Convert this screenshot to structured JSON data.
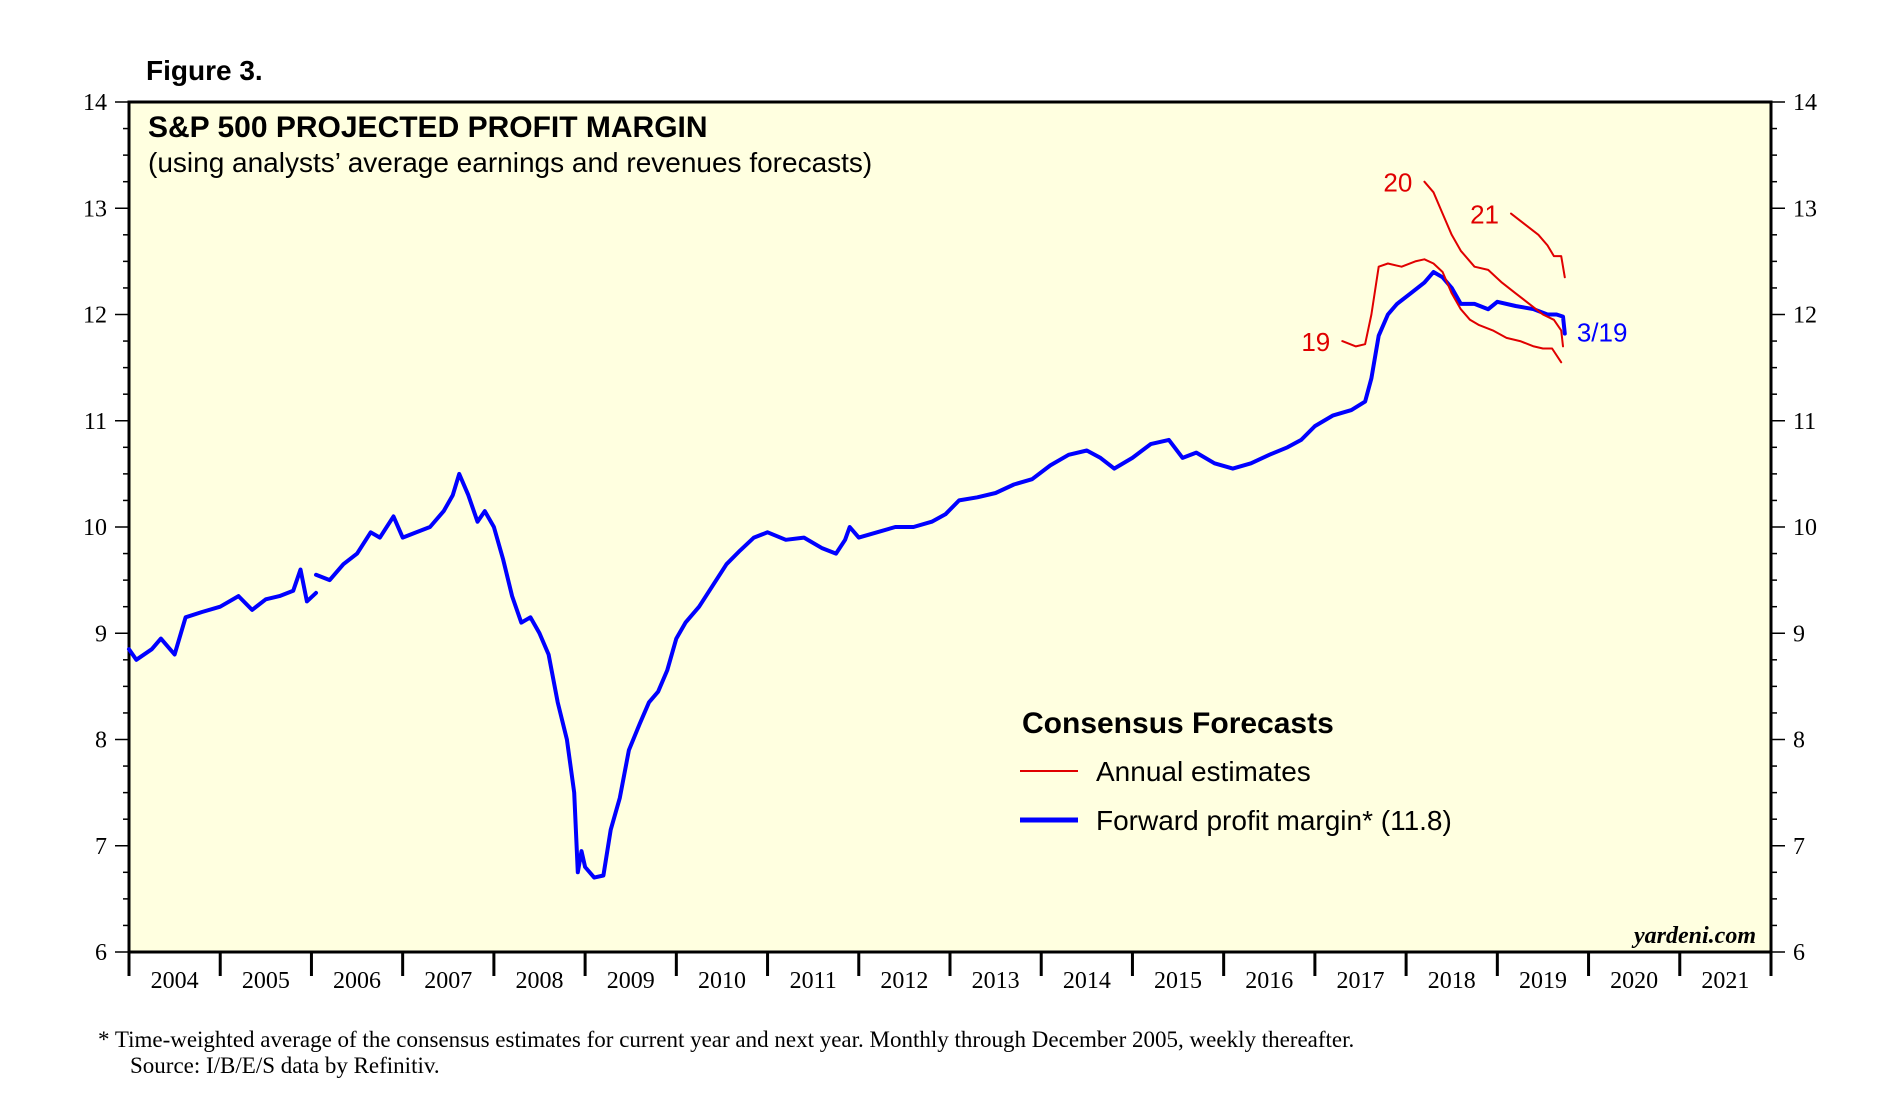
{
  "figure_label": "Figure 3.",
  "footnote": {
    "line1": "*   Time-weighted average of the consensus estimates for current year and next year. Monthly through December 2005, weekly thereafter.",
    "line2": "Source: I/B/E/S data by Refinitiv."
  },
  "colors": {
    "plot_bg": "#ffffe0",
    "forward": "#0000ff",
    "annual": "#e00000",
    "text": "#000000"
  },
  "chart_data": {
    "type": "line",
    "title": "S&P 500 PROJECTED PROFIT MARGIN",
    "subtitle": "(using analysts’ average earnings and revenues forecasts)",
    "watermark": "yardeni.com",
    "xlabel": "",
    "ylabel": "",
    "xlim": [
      2004.0,
      2022.0
    ],
    "ylim": [
      6,
      14
    ],
    "y_ticks": [
      6,
      7,
      8,
      9,
      10,
      11,
      12,
      13,
      14
    ],
    "x_tick_labels": [
      "2004",
      "2005",
      "2006",
      "2007",
      "2008",
      "2009",
      "2010",
      "2011",
      "2012",
      "2013",
      "2014",
      "2015",
      "2016",
      "2017",
      "2018",
      "2019",
      "2020",
      "2021"
    ],
    "legend": {
      "title": "Consensus Forecasts",
      "position": "lower-right",
      "items": [
        "Annual estimates",
        "Forward profit margin* (11.8)"
      ]
    },
    "annotations": {
      "last_date_label": "3/19",
      "year_labels": [
        "19",
        "20",
        "21"
      ]
    },
    "series": [
      {
        "name": "Forward profit margin*",
        "color": "#0000ff",
        "segments": [
          [
            [
              2004.0,
              8.85
            ],
            [
              2004.08,
              8.75
            ],
            [
              2004.25,
              8.85
            ],
            [
              2004.35,
              8.95
            ],
            [
              2004.5,
              8.8
            ],
            [
              2004.62,
              9.15
            ],
            [
              2004.8,
              9.2
            ],
            [
              2005.0,
              9.25
            ],
            [
              2005.2,
              9.35
            ],
            [
              2005.35,
              9.22
            ],
            [
              2005.5,
              9.32
            ],
            [
              2005.65,
              9.35
            ],
            [
              2005.8,
              9.4
            ],
            [
              2005.88,
              9.6
            ],
            [
              2005.95,
              9.3
            ],
            [
              2006.05,
              9.38
            ]
          ],
          [
            [
              2006.05,
              9.55
            ],
            [
              2006.2,
              9.5
            ],
            [
              2006.35,
              9.65
            ],
            [
              2006.5,
              9.75
            ],
            [
              2006.65,
              9.95
            ],
            [
              2006.75,
              9.9
            ],
            [
              2006.9,
              10.1
            ],
            [
              2007.0,
              9.9
            ],
            [
              2007.15,
              9.95
            ],
            [
              2007.3,
              10.0
            ],
            [
              2007.45,
              10.15
            ],
            [
              2007.55,
              10.3
            ],
            [
              2007.62,
              10.5
            ],
            [
              2007.72,
              10.3
            ],
            [
              2007.82,
              10.05
            ],
            [
              2007.9,
              10.15
            ],
            [
              2008.0,
              10.0
            ],
            [
              2008.1,
              9.7
            ],
            [
              2008.2,
              9.35
            ],
            [
              2008.3,
              9.1
            ],
            [
              2008.4,
              9.15
            ],
            [
              2008.5,
              9.0
            ],
            [
              2008.6,
              8.8
            ],
            [
              2008.7,
              8.35
            ],
            [
              2008.8,
              8.0
            ],
            [
              2008.88,
              7.5
            ],
            [
              2008.92,
              6.75
            ],
            [
              2008.96,
              6.95
            ],
            [
              2009.0,
              6.8
            ],
            [
              2009.1,
              6.7
            ],
            [
              2009.2,
              6.72
            ],
            [
              2009.28,
              7.15
            ],
            [
              2009.38,
              7.45
            ],
            [
              2009.48,
              7.9
            ],
            [
              2009.6,
              8.15
            ],
            [
              2009.7,
              8.35
            ],
            [
              2009.8,
              8.45
            ],
            [
              2009.9,
              8.65
            ],
            [
              2010.0,
              8.95
            ],
            [
              2010.1,
              9.1
            ],
            [
              2010.25,
              9.25
            ],
            [
              2010.4,
              9.45
            ],
            [
              2010.55,
              9.65
            ],
            [
              2010.7,
              9.78
            ],
            [
              2010.85,
              9.9
            ],
            [
              2011.0,
              9.95
            ],
            [
              2011.2,
              9.88
            ],
            [
              2011.4,
              9.9
            ],
            [
              2011.6,
              9.8
            ],
            [
              2011.75,
              9.75
            ],
            [
              2011.85,
              9.88
            ],
            [
              2011.9,
              10.0
            ],
            [
              2012.0,
              9.9
            ],
            [
              2012.2,
              9.95
            ],
            [
              2012.4,
              10.0
            ],
            [
              2012.6,
              10.0
            ],
            [
              2012.8,
              10.05
            ],
            [
              2012.95,
              10.12
            ],
            [
              2013.1,
              10.25
            ],
            [
              2013.3,
              10.28
            ],
            [
              2013.5,
              10.32
            ],
            [
              2013.7,
              10.4
            ],
            [
              2013.9,
              10.45
            ],
            [
              2014.1,
              10.58
            ],
            [
              2014.3,
              10.68
            ],
            [
              2014.5,
              10.72
            ],
            [
              2014.65,
              10.65
            ],
            [
              2014.8,
              10.55
            ],
            [
              2015.0,
              10.65
            ],
            [
              2015.2,
              10.78
            ],
            [
              2015.4,
              10.82
            ],
            [
              2015.55,
              10.65
            ],
            [
              2015.7,
              10.7
            ],
            [
              2015.9,
              10.6
            ],
            [
              2016.1,
              10.55
            ],
            [
              2016.3,
              10.6
            ],
            [
              2016.5,
              10.68
            ],
            [
              2016.7,
              10.75
            ],
            [
              2016.85,
              10.82
            ],
            [
              2017.0,
              10.95
            ],
            [
              2017.2,
              11.05
            ],
            [
              2017.4,
              11.1
            ],
            [
              2017.55,
              11.18
            ],
            [
              2017.62,
              11.4
            ],
            [
              2017.7,
              11.8
            ],
            [
              2017.8,
              12.0
            ],
            [
              2017.9,
              12.1
            ],
            [
              2018.05,
              12.2
            ],
            [
              2018.2,
              12.3
            ],
            [
              2018.3,
              12.4
            ],
            [
              2018.4,
              12.35
            ],
            [
              2018.5,
              12.25
            ],
            [
              2018.6,
              12.1
            ],
            [
              2018.75,
              12.1
            ],
            [
              2018.9,
              12.05
            ],
            [
              2019.0,
              12.12
            ],
            [
              2019.2,
              12.08
            ],
            [
              2019.4,
              12.05
            ],
            [
              2019.55,
              12.0
            ],
            [
              2019.65,
              12.0
            ],
            [
              2019.72,
              11.98
            ],
            [
              2019.74,
              11.82
            ]
          ]
        ]
      },
      {
        "name": "Annual estimates 2019",
        "label": "19",
        "color": "#e00000",
        "segments": [
          [
            [
              2017.3,
              11.75
            ],
            [
              2017.45,
              11.7
            ],
            [
              2017.55,
              11.72
            ],
            [
              2017.62,
              12.0
            ],
            [
              2017.7,
              12.45
            ],
            [
              2017.8,
              12.48
            ],
            [
              2017.95,
              12.45
            ],
            [
              2018.1,
              12.5
            ],
            [
              2018.2,
              12.52
            ],
            [
              2018.3,
              12.48
            ],
            [
              2018.4,
              12.4
            ],
            [
              2018.5,
              12.2
            ],
            [
              2018.6,
              12.05
            ],
            [
              2018.7,
              11.95
            ],
            [
              2018.8,
              11.9
            ],
            [
              2018.95,
              11.85
            ],
            [
              2019.1,
              11.78
            ],
            [
              2019.25,
              11.75
            ],
            [
              2019.4,
              11.7
            ],
            [
              2019.5,
              11.68
            ],
            [
              2019.6,
              11.68
            ],
            [
              2019.7,
              11.55
            ]
          ]
        ]
      },
      {
        "name": "Annual estimates 2020",
        "label": "20",
        "color": "#e00000",
        "segments": [
          [
            [
              2018.2,
              13.25
            ],
            [
              2018.3,
              13.15
            ],
            [
              2018.4,
              12.95
            ],
            [
              2018.5,
              12.75
            ],
            [
              2018.6,
              12.6
            ],
            [
              2018.75,
              12.45
            ],
            [
              2018.9,
              12.42
            ],
            [
              2019.05,
              12.3
            ],
            [
              2019.2,
              12.2
            ],
            [
              2019.35,
              12.1
            ],
            [
              2019.5,
              12.0
            ],
            [
              2019.62,
              11.95
            ],
            [
              2019.7,
              11.85
            ],
            [
              2019.72,
              11.7
            ]
          ]
        ]
      },
      {
        "name": "Annual estimates 2021",
        "label": "21",
        "color": "#e00000",
        "segments": [
          [
            [
              2019.15,
              12.95
            ],
            [
              2019.3,
              12.85
            ],
            [
              2019.45,
              12.75
            ],
            [
              2019.55,
              12.65
            ],
            [
              2019.62,
              12.55
            ],
            [
              2019.7,
              12.55
            ],
            [
              2019.74,
              12.35
            ]
          ]
        ]
      }
    ]
  }
}
